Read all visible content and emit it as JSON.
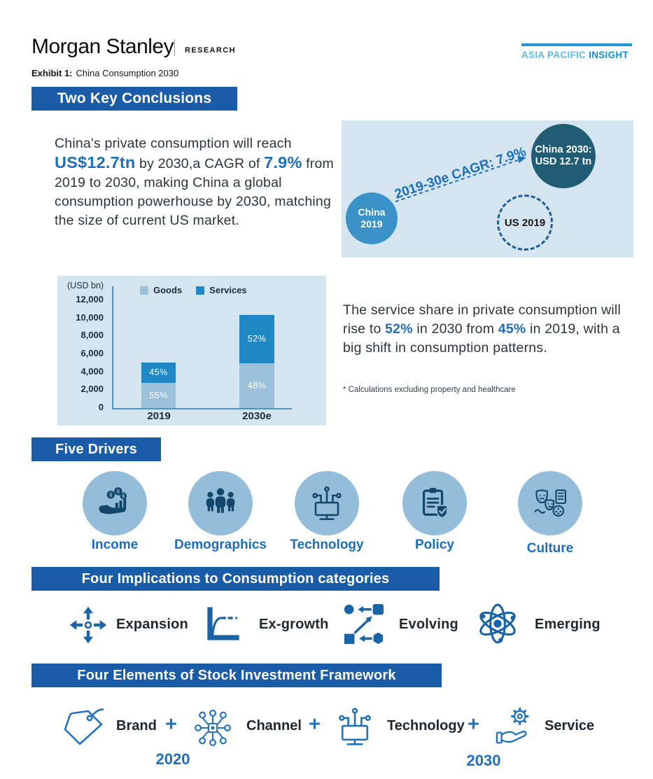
{
  "header": {
    "brand": "Morgan Stanley",
    "division": "RESEARCH",
    "region_badge": {
      "light": "ASIA PACIFIC ",
      "bold": "INSIGHT"
    },
    "exhibit_label": "Exhibit 1:",
    "exhibit_title": "China Consumption 2030"
  },
  "conclusions": {
    "banner": "Two Key Conclusions",
    "paragraph1": {
      "t1": "China's private consumption will reach ",
      "h1": "US$12.7tn",
      "t2": " by 2030,a CAGR of ",
      "h2": "7.9%",
      "t3": " from 2019 to 2030, making China a global consumption powerhouse by 2030, matching the size of current US market."
    },
    "diagram": {
      "china2019_line1": "China",
      "china2019_line2": "2019",
      "arrow_label": "2019-30e CAGR: 7.9%",
      "china2030_line1": "China 2030:",
      "china2030_line2": "USD 12.7 tn",
      "us2019": "US 2019"
    },
    "paragraph2": {
      "t1": "The service share in private consumption will rise to ",
      "h1": "52%",
      "t2": " in 2030 from ",
      "h2": "45%",
      "t3": " in 2019, with a big shift in consumption patterns."
    },
    "footnote": "* Calculations excluding property and healthcare"
  },
  "chart_data": {
    "type": "bar",
    "stacked": true,
    "title": "",
    "ylabel": "(USD bn)",
    "xlabel": "",
    "categories": [
      "2019",
      "2030e"
    ],
    "series": [
      {
        "name": "Goods",
        "color": "#9BC1DB",
        "values": [
          2800,
          5000
        ],
        "pct_labels": [
          "55%",
          "48%"
        ]
      },
      {
        "name": "Services",
        "color": "#1F88C3",
        "values": [
          2300,
          5400
        ],
        "pct_labels": [
          "45%",
          "52%"
        ]
      }
    ],
    "totals": [
      5100,
      10400
    ],
    "ylim": [
      0,
      12000
    ],
    "ytick_labels": [
      "12,000",
      "10,000",
      "8,000",
      "6,000",
      "4,000",
      "2,000",
      "0"
    ],
    "legend_position": "top",
    "grid": false
  },
  "drivers": {
    "banner": "Five Drivers",
    "items": [
      {
        "label": "Income",
        "icon": "income-icon"
      },
      {
        "label": "Demographics",
        "icon": "people-icon"
      },
      {
        "label": "Technology",
        "icon": "monitor-circuit-icon"
      },
      {
        "label": "Policy",
        "icon": "clipboard-shield-icon"
      },
      {
        "label": "Culture",
        "icon": "masks-media-icon"
      }
    ]
  },
  "implications": {
    "banner": "Four Implications to Consumption categories",
    "items": [
      {
        "label": "Expansion",
        "icon": "arrows-out-icon"
      },
      {
        "label": "Ex-growth",
        "icon": "plateau-chart-icon"
      },
      {
        "label": "Evolving",
        "icon": "shapes-transform-icon"
      },
      {
        "label": "Emerging",
        "icon": "atom-icon"
      }
    ]
  },
  "framework": {
    "banner": "Four Elements of Stock Investment Framework",
    "plus": "+",
    "items": [
      {
        "label": "Brand",
        "icon": "price-tag-icon"
      },
      {
        "label": "Channel",
        "icon": "network-icon"
      },
      {
        "label": "Technology",
        "icon": "monitor-circuit-icon"
      },
      {
        "label": "Service",
        "icon": "hand-gear-icon"
      }
    ],
    "year_start": "2020",
    "year_end": "2030"
  },
  "colors": {
    "banner_blue": "#1A5CA8",
    "accent_blue": "#1E6FB8",
    "panel_blue": "#D5E5F0",
    "driver_circle_fill": "#93BDD8",
    "dark_icon_navy": "#14466B",
    "implication_icon_blue": "#1A64A5",
    "outline_icon_blue": "#2272B9",
    "china2019_circle": "#3A92C6",
    "china2030_circle": "#205C74",
    "badge_light_blue": "#62B9E3",
    "badge_dark_blue": "#1792D0"
  }
}
